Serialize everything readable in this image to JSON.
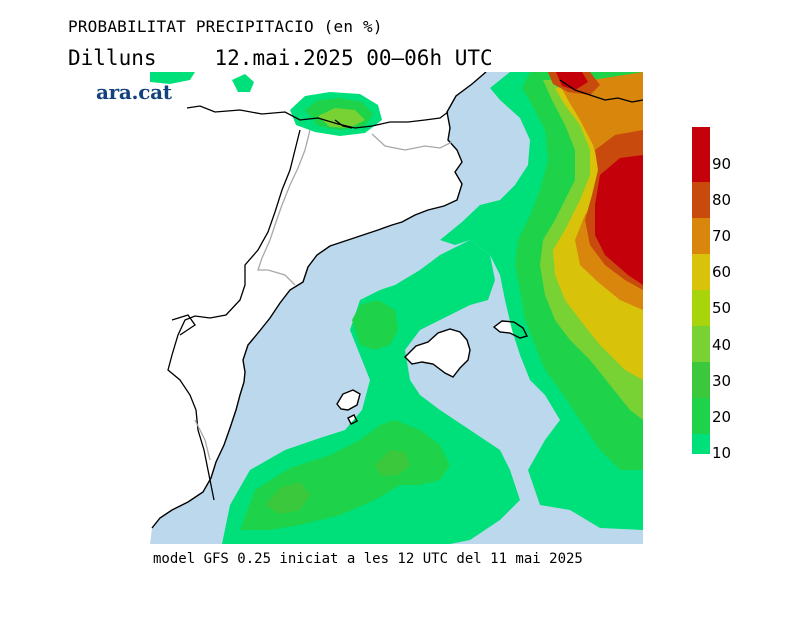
{
  "header": {
    "title": "PROBABILITAT PRECIPITACIO (en %)",
    "day": "Dilluns",
    "date_range": "12.mai.2025 00–06h UTC"
  },
  "logo": {
    "text": "ara.cat"
  },
  "footer": {
    "model_info": "model GFS 0.25 iniciat a les 12 UTC del 11 mai 2025"
  },
  "legend": {
    "unit": "%",
    "levels": [
      {
        "value": "10",
        "color": "#00e07a"
      },
      {
        "value": "20",
        "color": "#1ed24a"
      },
      {
        "value": "30",
        "color": "#3cc83c"
      },
      {
        "value": "40",
        "color": "#78d234"
      },
      {
        "value": "50",
        "color": "#a8d40c"
      },
      {
        "value": "60",
        "color": "#d8c20a"
      },
      {
        "value": "70",
        "color": "#d8860c"
      },
      {
        "value": "80",
        "color": "#c84a0c"
      },
      {
        "value": "90",
        "color": "#c4000a"
      }
    ],
    "top_color": "#c4000a"
  },
  "map": {
    "sea_color": "#bcd8ec",
    "land_color": "#ffffff",
    "coast_color": "#000000",
    "border_color": "#a8a8a8"
  }
}
